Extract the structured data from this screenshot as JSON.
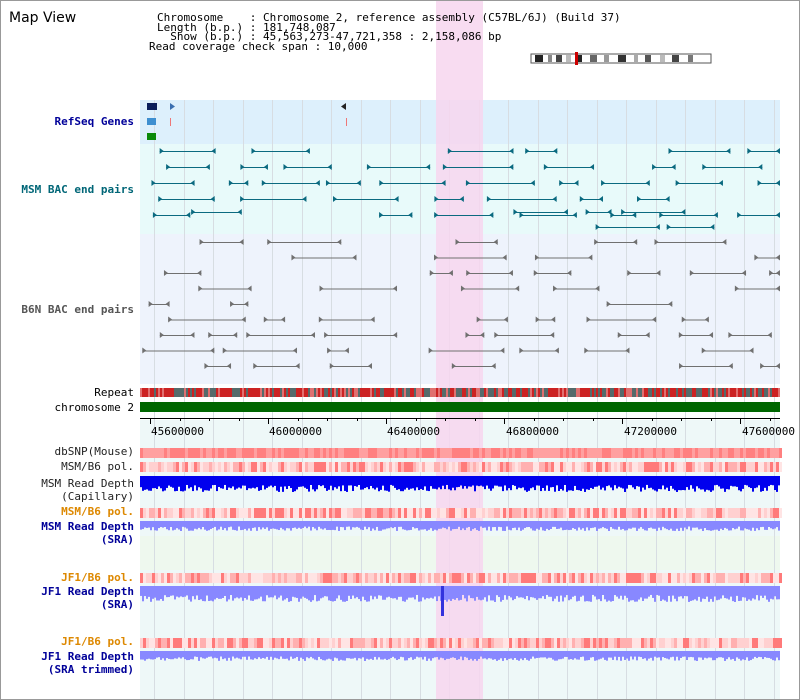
{
  "map_view": {
    "title": "Map View",
    "info_lines": [
      "Chromosome    : Chromosome 2, reference assembly (C57BL/6J) (Build 37)",
      "Length (b.p.) : 181,748,087",
      "  Show (b.p.) : 45,563,273-47,721,358 : 2,158,086 bp",
      "Read coverage check span : 10,000"
    ]
  },
  "tracks": {
    "refseq": {
      "label": "RefSeq Genes"
    },
    "msm_bac": {
      "label": "MSM BAC end pairs"
    },
    "b6n_bac": {
      "label": "B6N BAC end pairs"
    },
    "repeat": {
      "label": "Repeat"
    },
    "chromosome": {
      "label": "chromosome 2"
    },
    "dbsnp": {
      "label": "dbSNP(Mouse)"
    },
    "msm_b6_pol_1": {
      "label": "MSM/B6 pol."
    },
    "msm_depth_cap": {
      "label": "MSM Read Depth\n(Capillary)"
    },
    "msm_b6_pol_2": {
      "label": "MSM/B6 pol."
    },
    "msm_depth_sra": {
      "label": "MSM Read Depth\n(SRA)"
    },
    "jf1_b6_pol_1": {
      "label": "JF1/B6 pol."
    },
    "jf1_depth_sra": {
      "label": "JF1 Read Depth\n(SRA)"
    },
    "jf1_b6_pol_2": {
      "label": "JF1/B6 pol."
    },
    "jf1_depth_trim": {
      "label": "JF1 Read Depth\n(SRA trimmed)"
    }
  },
  "ruler": {
    "ticks": [
      "45600000",
      "46000000",
      "46400000",
      "46800000",
      "47200000",
      "47600000"
    ]
  },
  "colors": {
    "refseq_bg": "#ddf0fc",
    "msm_bg": "#e8fafa",
    "b6n_bg": "#eef3fc",
    "chromosome": "#006600",
    "highlight": "#f7d6ee",
    "label_blue": "#000099",
    "label_teal": "#006677",
    "label_orange": "#dd8800",
    "depth_dark": "#0000ee",
    "depth_light": "#8888ff"
  }
}
